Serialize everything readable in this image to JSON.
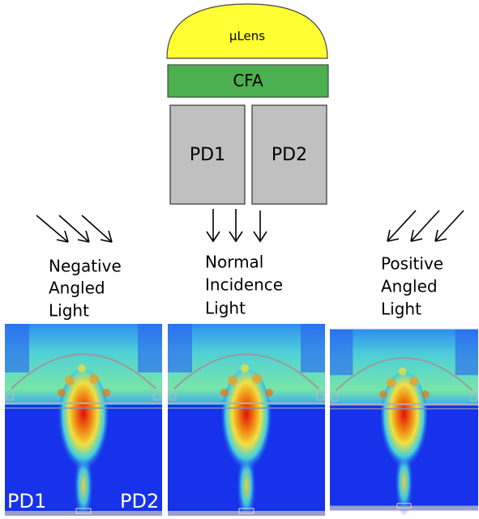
{
  "lens": {
    "label": "µLens"
  },
  "cfa": {
    "label": "CFA"
  },
  "photodiodes": [
    {
      "label": "PD1"
    },
    {
      "label": "PD2"
    }
  ],
  "illuminations": [
    {
      "lines": [
        "Negative",
        "Angled",
        "Light"
      ]
    },
    {
      "lines": [
        "Normal",
        "Incidence",
        "Light"
      ]
    },
    {
      "lines": [
        "Positive",
        "Angled",
        "Light"
      ]
    }
  ],
  "simulation_labels": [
    "PD1",
    "PD2"
  ]
}
